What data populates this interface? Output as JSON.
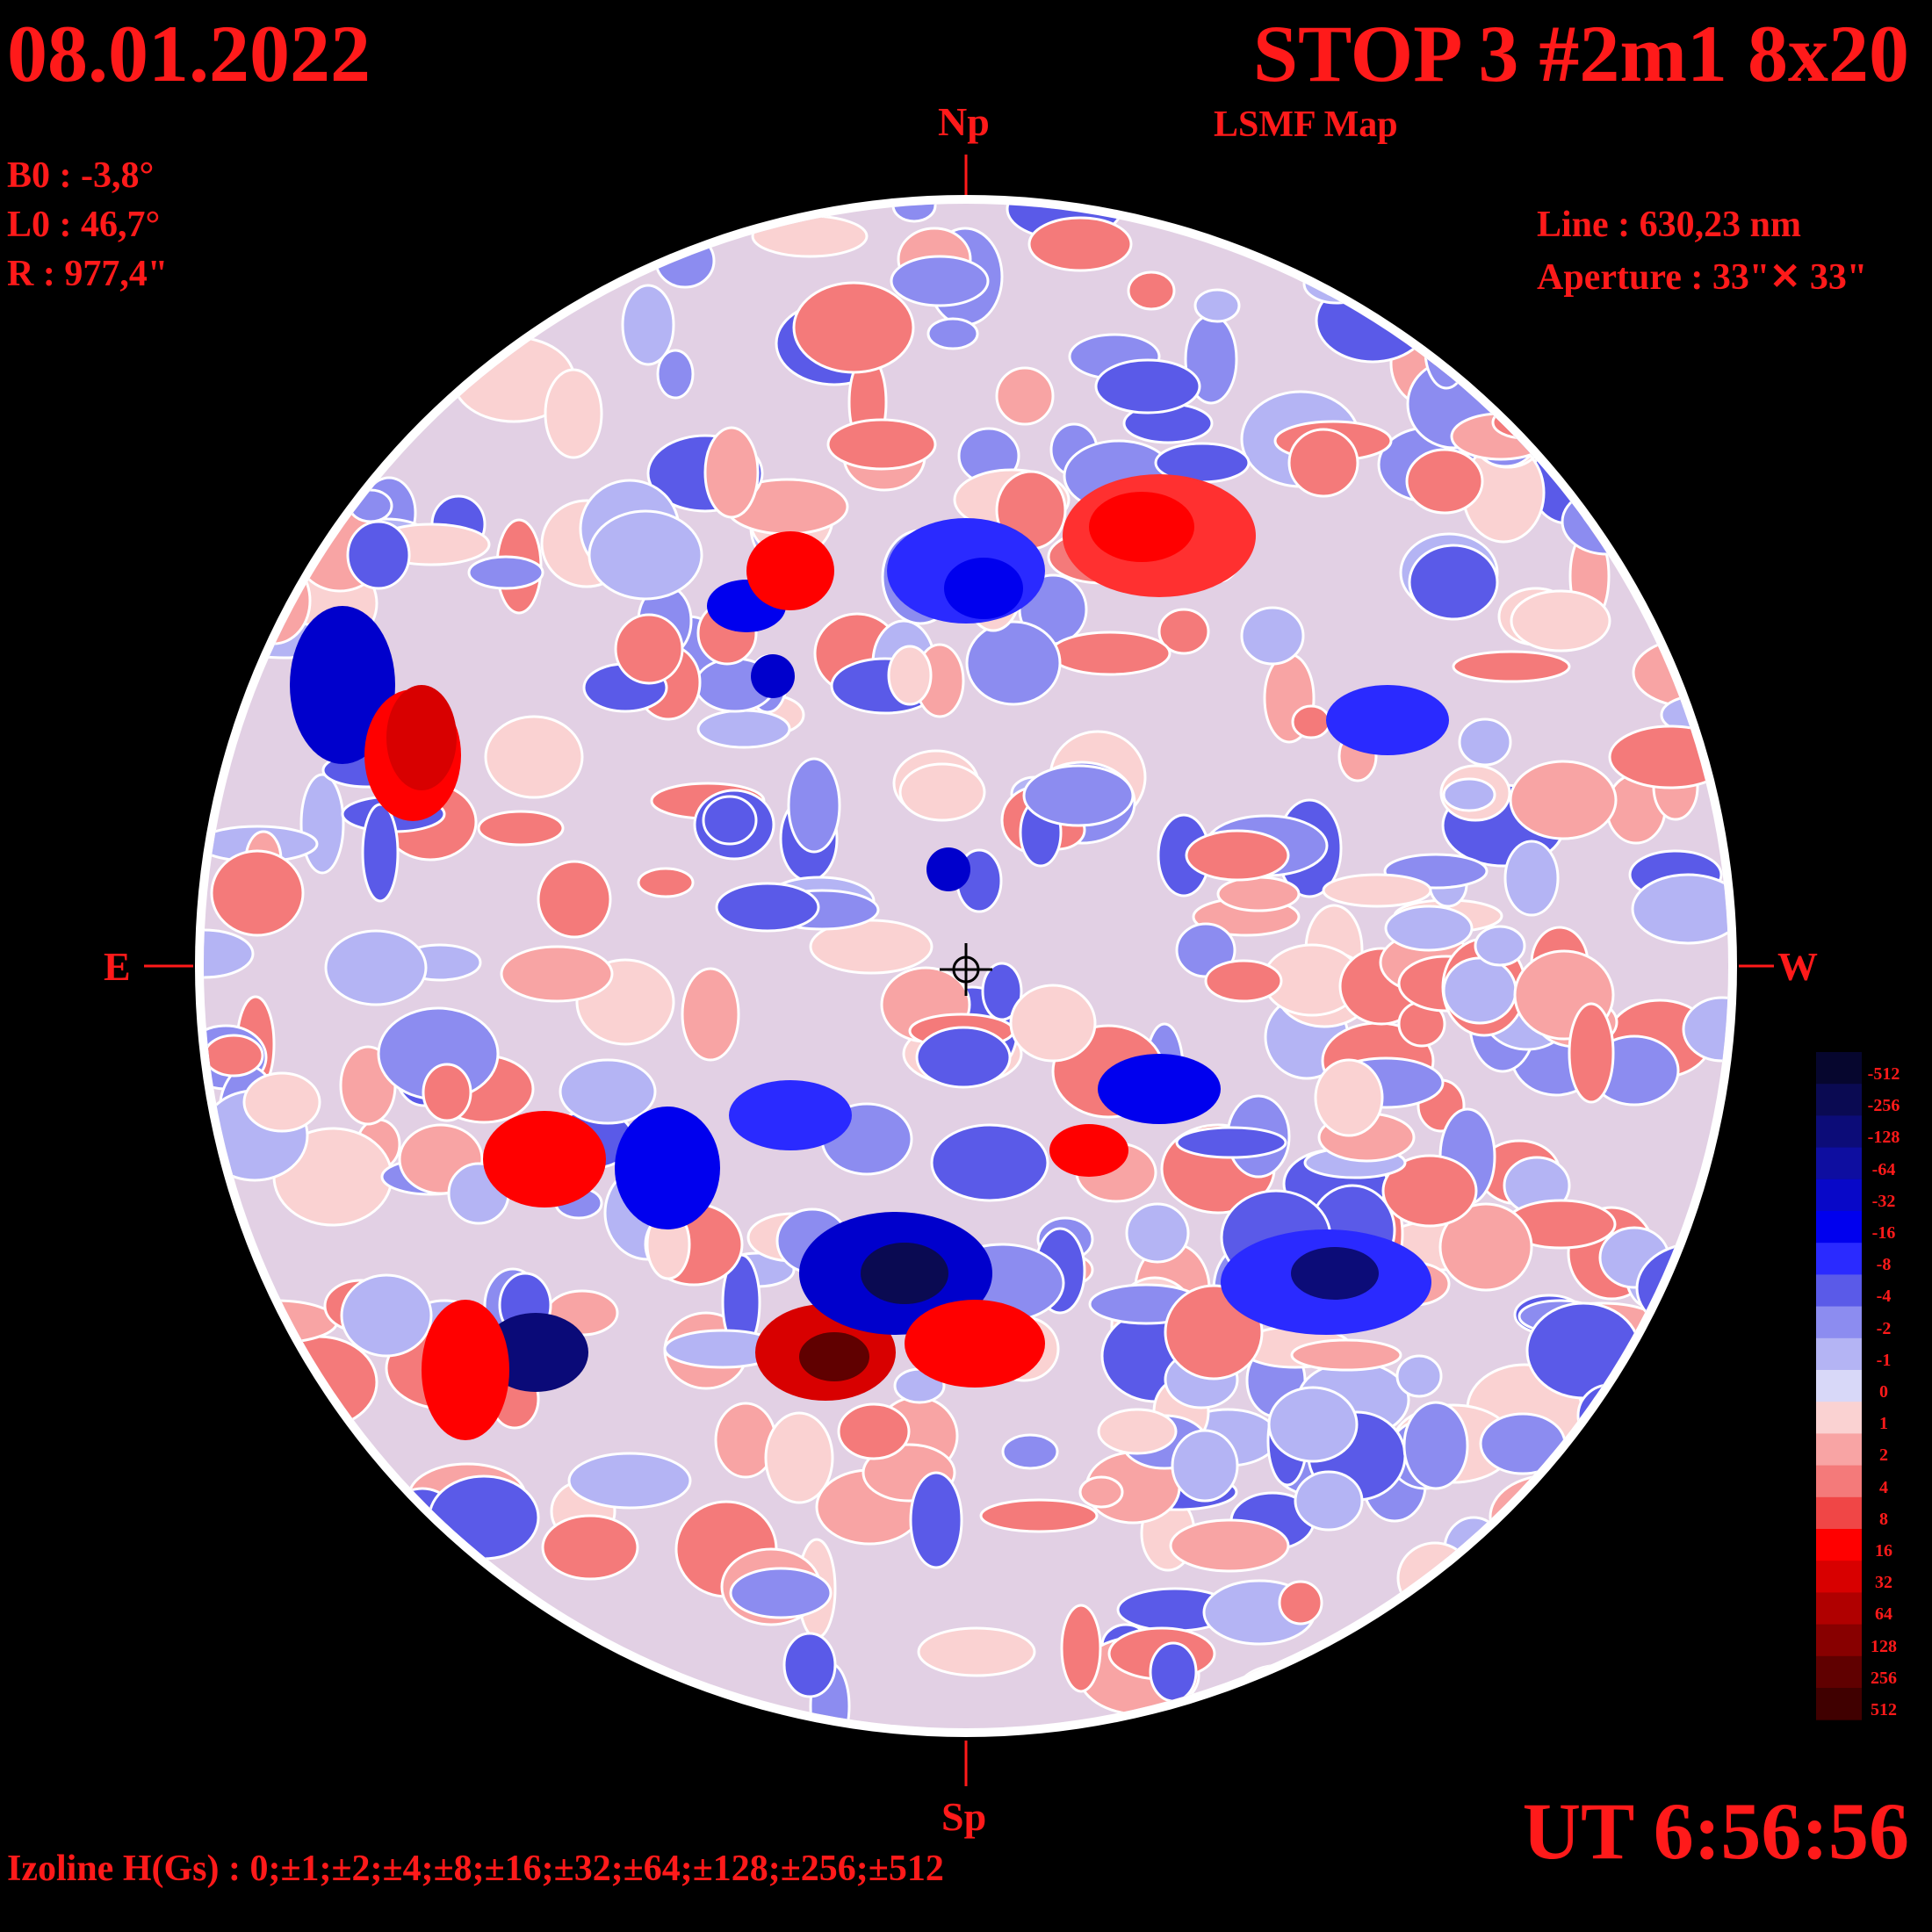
{
  "header": {
    "date": "08.01.2022",
    "title": "STOP 3 #2m1 8x20",
    "subtitle": "LSMF  Map"
  },
  "params": {
    "b0": "B0 : -3,8°",
    "l0": "L0 : 46,7°",
    "r": "R  : 977,4\"",
    "line": "Line :  630,23 nm",
    "aperture": "Aperture : 33\"✕ 33\""
  },
  "directions": {
    "north": "Np",
    "south": "Sp",
    "east": "E",
    "west": "W"
  },
  "time": "UT 6:56:56",
  "izoline": "Izoline H(Gs) : 0;±1;±2;±4;±8;±16;±32;±64;±128;±256;±512",
  "colorbar": {
    "labels": [
      "-512",
      "-256",
      "-128",
      "-64",
      "-32",
      "-16",
      "-8",
      "-4",
      "-2",
      "-1",
      "0",
      "1",
      "2",
      "4",
      "8",
      "16",
      "32",
      "64",
      "128",
      "256",
      "512"
    ],
    "colors": [
      "#06062e",
      "#0a0a52",
      "#0c0c78",
      "#0e0ea0",
      "#0808c8",
      "#0000ee",
      "#2a2aff",
      "#5a5ae8",
      "#8c8cf0",
      "#b4b4f4",
      "#d8d8f8",
      "#fad2d2",
      "#f8a4a4",
      "#f47a7a",
      "#f04646",
      "#ff0000",
      "#d80000",
      "#b00000",
      "#880000",
      "#600000",
      "#400000"
    ]
  }
}
